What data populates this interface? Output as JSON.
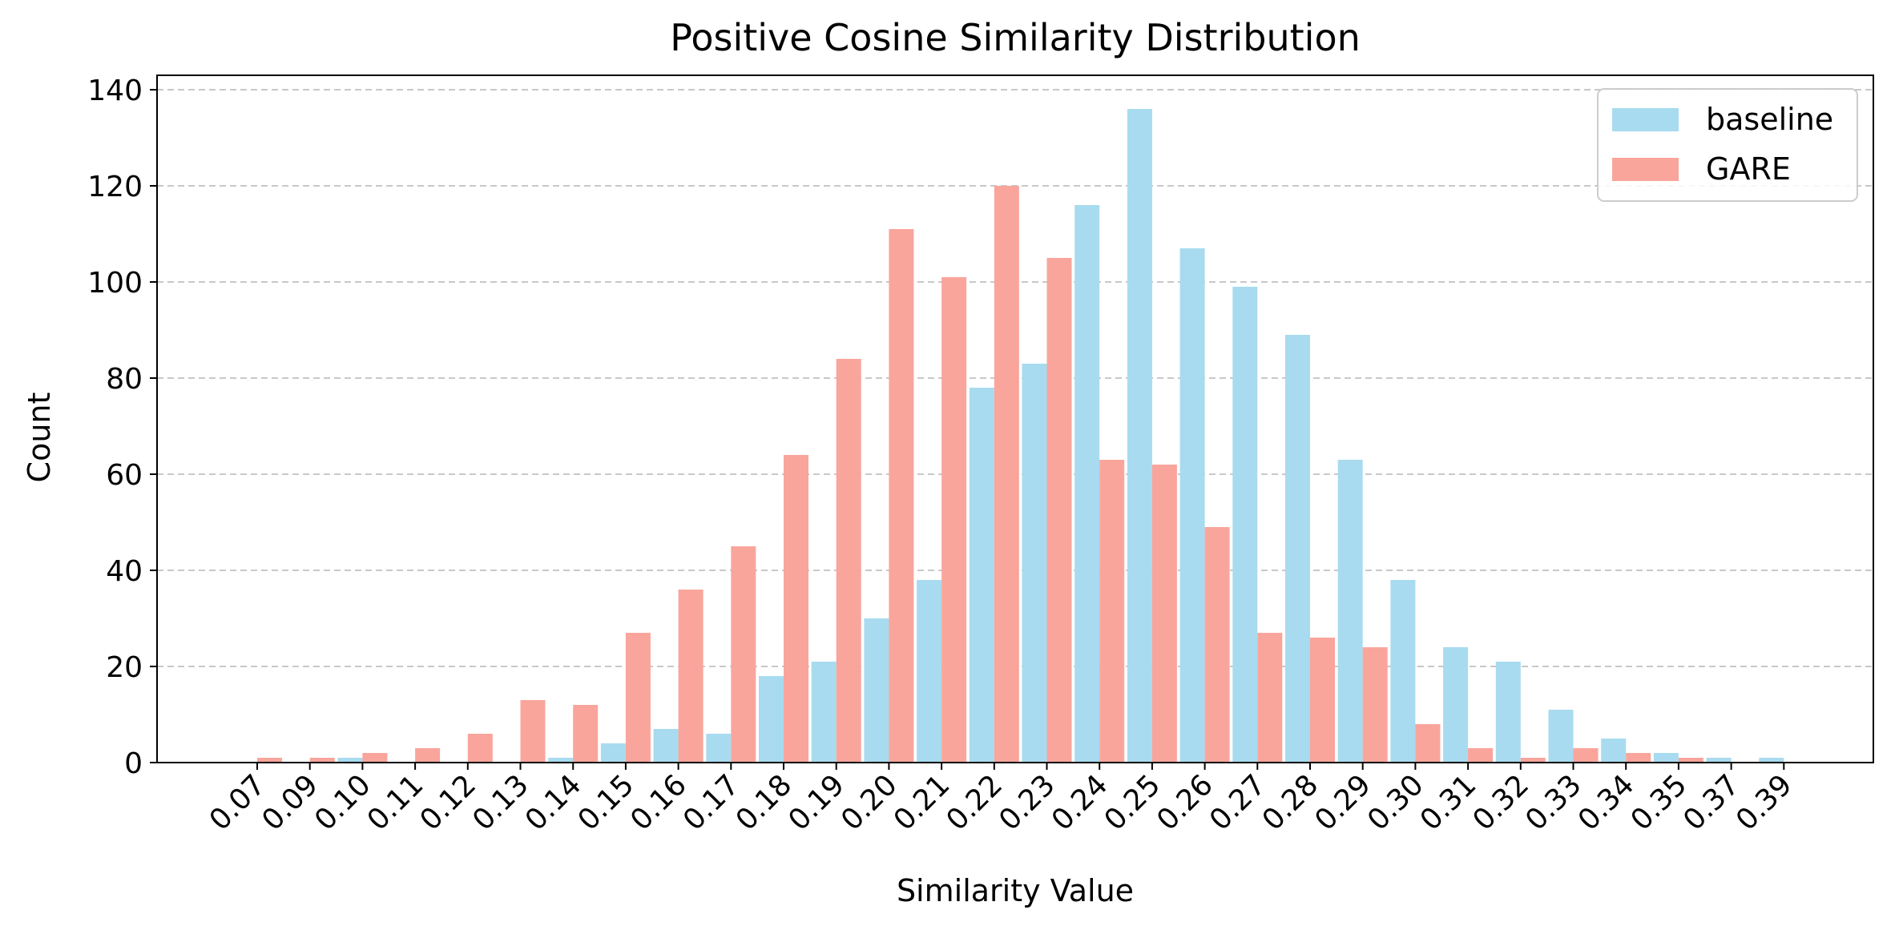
{
  "chart_data": {
    "type": "bar",
    "title": "Positive Cosine Similarity Distribution",
    "xlabel": "Similarity Value",
    "ylabel": "Count",
    "ylim": [
      0,
      143
    ],
    "yticks": [
      0,
      20,
      40,
      60,
      80,
      100,
      120,
      140
    ],
    "grid": "y, dashed",
    "legend_position": "top-right",
    "categories": [
      "0.07",
      "0.09",
      "0.10",
      "0.11",
      "0.12",
      "0.13",
      "0.14",
      "0.15",
      "0.16",
      "0.17",
      "0.18",
      "0.19",
      "0.20",
      "0.21",
      "0.22",
      "0.23",
      "0.24",
      "0.25",
      "0.26",
      "0.27",
      "0.28",
      "0.29",
      "0.30",
      "0.31",
      "0.32",
      "0.33",
      "0.34",
      "0.35",
      "0.37",
      "0.39"
    ],
    "series": [
      {
        "name": "baseline",
        "color": "#a8dbef",
        "values": [
          0,
          0,
          1,
          0,
          0,
          0,
          1,
          4,
          7,
          6,
          18,
          21,
          30,
          38,
          78,
          83,
          116,
          136,
          107,
          99,
          89,
          63,
          38,
          24,
          21,
          11,
          5,
          2,
          1,
          1
        ]
      },
      {
        "name": "GARE",
        "color": "#f9a59c",
        "values": [
          1,
          1,
          2,
          3,
          6,
          13,
          12,
          27,
          36,
          45,
          64,
          84,
          111,
          101,
          120,
          105,
          63,
          62,
          49,
          27,
          26,
          24,
          8,
          3,
          1,
          3,
          2,
          1,
          0,
          0
        ]
      }
    ]
  }
}
